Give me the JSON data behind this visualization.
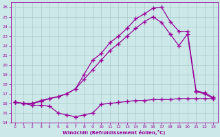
{
  "xlabel": "Windchill (Refroidissement éolien,°C)",
  "xlim": [
    -0.5,
    23.5
  ],
  "ylim": [
    14,
    26.5
  ],
  "xticks": [
    0,
    1,
    2,
    3,
    4,
    5,
    6,
    7,
    8,
    9,
    10,
    11,
    12,
    13,
    14,
    15,
    16,
    17,
    18,
    19,
    20,
    21,
    22,
    23
  ],
  "yticks": [
    14,
    15,
    16,
    17,
    18,
    19,
    20,
    21,
    22,
    23,
    24,
    25,
    26
  ],
  "bg_color": "#cce8e8",
  "line_color": "#990099",
  "grid_color": "#aacccc",
  "line1_x": [
    0,
    1,
    2,
    3,
    4,
    5,
    6,
    7,
    8,
    9,
    10,
    11,
    12,
    13,
    14,
    15,
    16,
    17,
    18,
    19,
    20,
    21,
    22,
    23
  ],
  "line1_y": [
    16.1,
    16.0,
    15.8,
    15.8,
    15.7,
    15.0,
    14.8,
    14.6,
    14.8,
    15.0,
    15.9,
    16.0,
    16.1,
    16.2,
    16.3,
    16.3,
    16.4,
    16.4,
    16.4,
    16.5,
    16.5,
    16.5,
    16.5,
    16.5
  ],
  "line2_x": [
    0,
    1,
    2,
    3,
    4,
    5,
    6,
    7,
    8,
    9,
    10,
    11,
    12,
    13,
    14,
    15,
    16,
    17,
    18,
    19,
    20,
    21,
    22,
    23
  ],
  "line2_y": [
    16.1,
    16.0,
    16.0,
    16.2,
    16.5,
    16.7,
    17.0,
    17.5,
    18.5,
    19.5,
    20.5,
    21.5,
    22.2,
    23.0,
    23.8,
    24.5,
    25.0,
    24.4,
    23.2,
    22.0,
    23.2,
    17.2,
    17.0,
    16.5
  ],
  "line3_x": [
    0,
    1,
    2,
    3,
    4,
    5,
    6,
    7,
    8,
    9,
    10,
    11,
    12,
    13,
    14,
    15,
    16,
    17,
    18,
    19,
    20,
    21,
    22,
    23
  ],
  "line3_y": [
    16.1,
    16.0,
    16.0,
    16.3,
    16.5,
    16.7,
    17.0,
    17.5,
    19.0,
    20.5,
    21.2,
    22.3,
    23.0,
    23.8,
    24.8,
    25.3,
    25.9,
    26.0,
    24.5,
    23.5,
    23.5,
    17.3,
    17.1,
    16.6
  ],
  "marker": "+",
  "markersize": 4,
  "linewidth": 0.9,
  "markeredgewidth": 1.0
}
